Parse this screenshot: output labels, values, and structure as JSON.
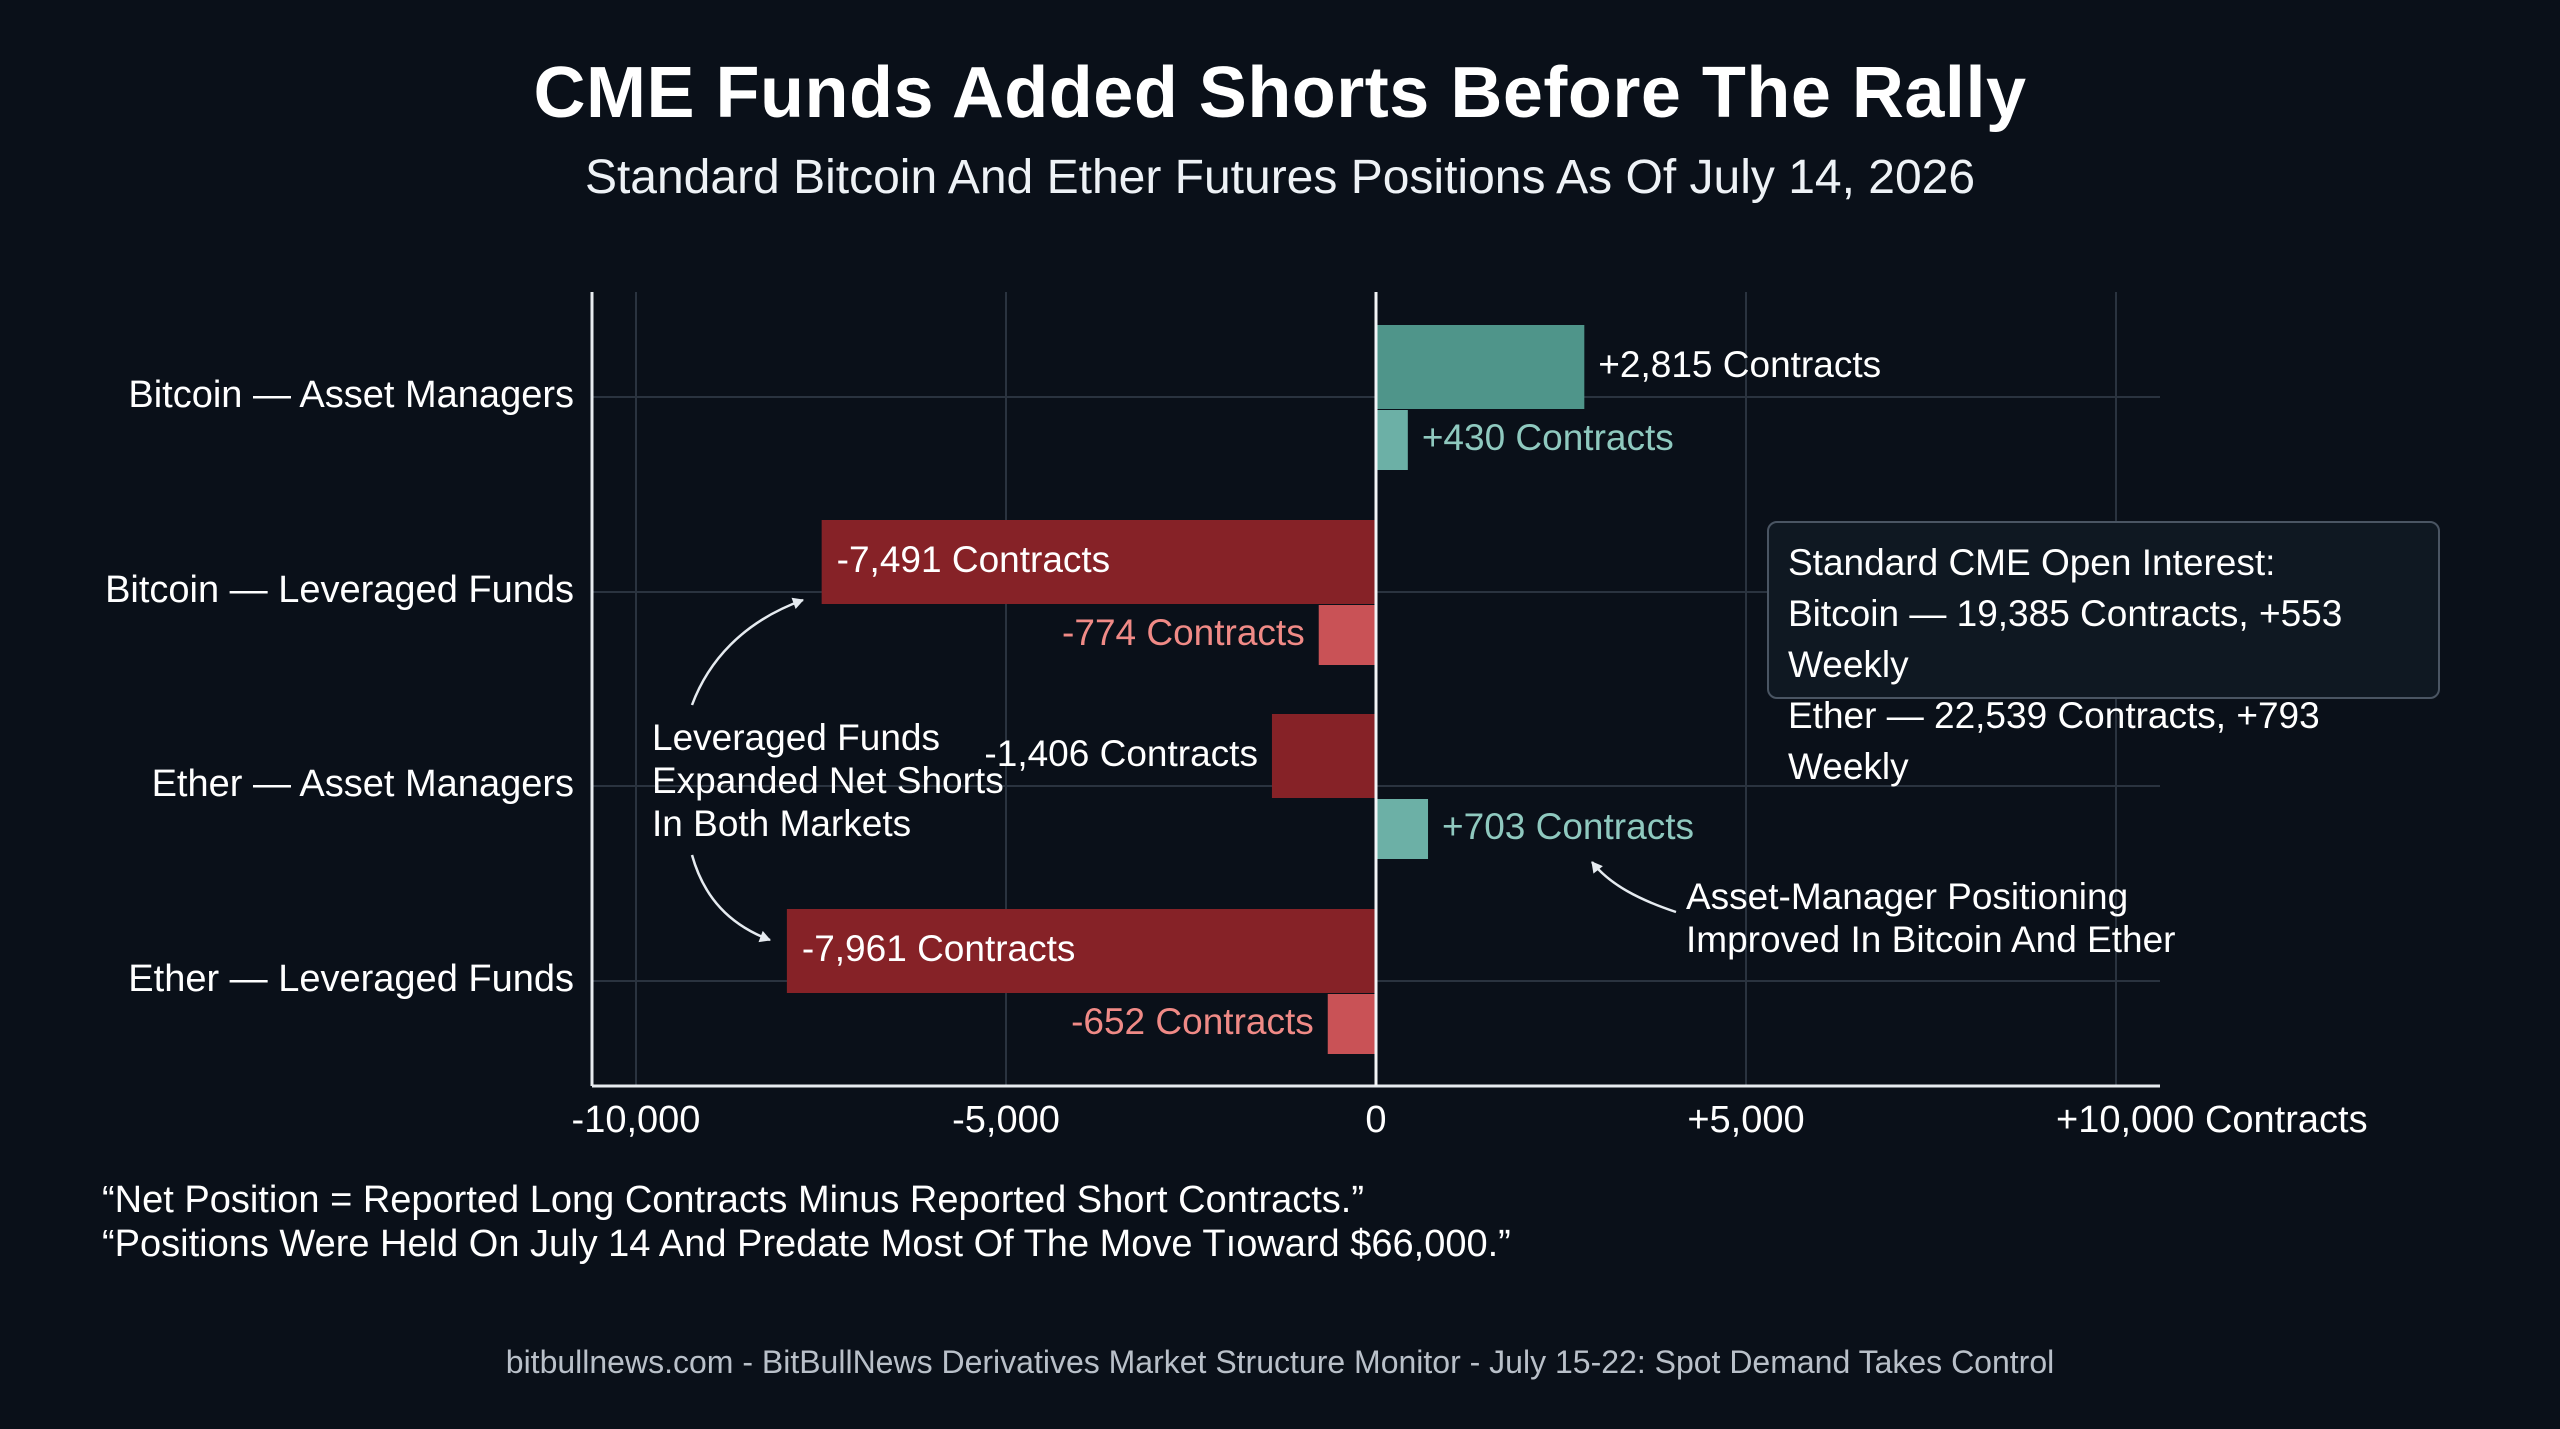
{
  "header": {
    "title": "CME Funds Added Shorts Before The Rally",
    "subtitle": "Standard Bitcoin And Ether Futures Positions As Of July 14, 2026"
  },
  "chart_data": {
    "type": "bar",
    "orientation": "horizontal",
    "categories": [
      "Bitcoin — Asset Managers",
      "Bitcoin — Leveraged Funds",
      "Ether — Asset Managers",
      "Ether — Leveraged Funds"
    ],
    "series": [
      {
        "values": [
          2815,
          -7491,
          -1406,
          -7961
        ],
        "labels": [
          "+2,815 Contracts",
          "-7,491 Contracts",
          "-1,406 Contracts",
          "-7,961 Contracts"
        ]
      },
      {
        "values": [
          430,
          -774,
          703,
          -652
        ],
        "labels": [
          "+430 Contracts",
          "-774 Contracts",
          "+703 Contracts",
          "-652 Contracts"
        ]
      }
    ],
    "xlim": [
      -10000,
      10000
    ],
    "x_ticks": [
      -10000,
      -5000,
      0,
      5000,
      10000
    ],
    "x_tick_labels": [
      "-10,000",
      "-5,000",
      "0",
      "+5,000",
      "+10,000 Contracts"
    ],
    "grid": true,
    "colors": {
      "positive_primary": "#4f958a",
      "positive_secondary": "#6cb0a6",
      "negative_primary": "#862227",
      "negative_secondary": "#c95256",
      "positive_secondary_label": "#8fc9bf",
      "negative_secondary_label": "#f08a86"
    },
    "annotations": {
      "leveraged": "Leveraged Funds\nExpanded Net Shorts\nIn Both Markets",
      "asset_managers": "Asset-Manager Positioning\nImproved In Bitcoin And Ether"
    }
  },
  "open_interest": {
    "title": "Standard CME Open Interest:",
    "bitcoin": "Bitcoin — 19,385 Contracts, +553 Weekly",
    "ether": "Ether — 22,539 Contracts, +793 Weekly"
  },
  "notes": {
    "line1": "“Net Position = Reported Long Contracts Minus Reported Short Contracts.”",
    "line2": "“Positions Were Held On July 14 And Predate Most Of The Move Tıoward $66,000.”"
  },
  "footer": {
    "text": "bitbullnews.com - BitBullNews Derivatives Market Structure Monitor - July 15-22: Spot Demand Takes Control"
  }
}
